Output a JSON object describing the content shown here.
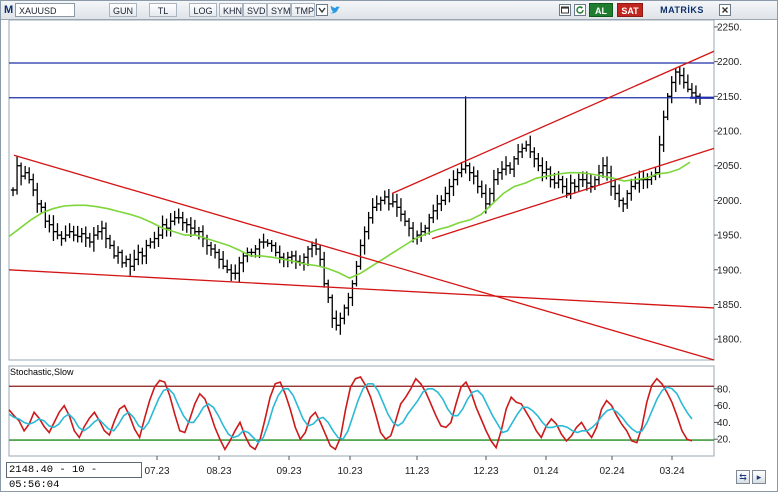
{
  "toolbar": {
    "logo": "M",
    "symbol": "XAUUSD",
    "buttons": [
      "GUN",
      "TL",
      "LOG",
      "KHN",
      "SVD",
      "SYM",
      "TMP"
    ],
    "dropdown_icon": "chevron-down-icon",
    "twitter_icon": "twitter-icon",
    "right_icons": [
      "window-icon",
      "refresh-icon",
      "close-icon"
    ],
    "buy_label": "AL",
    "sell_label": "SAT",
    "brand": "MATRİKS",
    "colors": {
      "buy": "#1e7d2e",
      "sell": "#c0261f",
      "brand": "#0d2f6a"
    }
  },
  "readout": "2148.40 - 10 - 05:56:04",
  "nav_icons": [
    "sync-icon",
    "scroll-right-icon"
  ],
  "indicator": {
    "title": "Stochastic,Slow",
    "levels": [
      "80.",
      "60.",
      "40.",
      "20."
    ]
  },
  "chart_data": [
    {
      "type": "line",
      "subtype": "ohlc-bars",
      "title": "XAUUSD",
      "x_tick_labels": [
        "07.23",
        "08.23",
        "09.23",
        "10.23",
        "11.23",
        "12.23",
        "01.24",
        "02.24",
        "03.24"
      ],
      "y_tick_labels": [
        "1800.",
        "1850.",
        "1900.",
        "1950.",
        "2000.",
        "2050.",
        "2100.",
        "2150.",
        "2200.",
        "2250."
      ],
      "ylim": [
        1770,
        2260
      ],
      "last_price": "2148.40",
      "series": [
        {
          "name": "",
          "color": "#000000",
          "closes": [
            2015,
            2050,
            2035,
            2040,
            2030,
            2015,
            1995,
            1990,
            1970,
            1965,
            1955,
            1950,
            1945,
            1950,
            1955,
            1950,
            1948,
            1952,
            1946,
            1940,
            1950,
            1955,
            1960,
            1945,
            1935,
            1920,
            1925,
            1910,
            1915,
            1905,
            1915,
            1925,
            1920,
            1935,
            1940,
            1945,
            1950,
            1965,
            1960,
            1970,
            1975,
            1975,
            1968,
            1965,
            1960,
            1955,
            1955,
            1945,
            1935,
            1930,
            1925,
            1915,
            1905,
            1900,
            1895,
            1895,
            1910,
            1920,
            1925,
            1925,
            1930,
            1940,
            1940,
            1938,
            1935,
            1925,
            1918,
            1915,
            1918,
            1920,
            1912,
            1910,
            1918,
            1930,
            1935,
            1930,
            1915,
            1880,
            1860,
            1830,
            1820,
            1830,
            1845,
            1860,
            1880,
            1905,
            1935,
            1955,
            1975,
            1990,
            1995,
            2000,
            2005,
            1995,
            1998,
            1990,
            1980,
            1970,
            1960,
            1945,
            1950,
            1955,
            1960,
            1975,
            1985,
            1995,
            2000,
            2010,
            2020,
            2030,
            2040,
            2045,
            2050,
            2040,
            2035,
            2020,
            2010,
            1995,
            2010,
            2030,
            2040,
            2045,
            2050,
            2045,
            2060,
            2070,
            2075,
            2080,
            2070,
            2060,
            2050,
            2040,
            2045,
            2030,
            2025,
            2030,
            2020,
            2010,
            2025,
            2020,
            2030,
            2030,
            2025,
            2020,
            2030,
            2040,
            2050,
            2040,
            2020,
            2010,
            2000,
            1995,
            2010,
            2020,
            2025,
            2030,
            2030,
            2030,
            2035,
            2040,
            2080,
            2120,
            2150,
            2170,
            2185,
            2180,
            2170,
            2160,
            2155,
            2150,
            2148
          ]
        },
        {
          "name": "",
          "color": "#7dd63a",
          "values": [
            1948,
            1960,
            1972,
            1982,
            1988,
            1992,
            1993,
            1993,
            1991,
            1988,
            1984,
            1980,
            1975,
            1968,
            1960,
            1955,
            1950,
            1950,
            1945,
            1940,
            1935,
            1928,
            1920,
            1920,
            1918,
            1915,
            1912,
            1908,
            1906,
            1902,
            1896,
            1888,
            1895,
            1905,
            1915,
            1925,
            1935,
            1945,
            1952,
            1958,
            1962,
            1968,
            1972,
            1980,
            1995,
            2010,
            2020,
            2025,
            2032,
            2035,
            2038,
            2040,
            2040,
            2038,
            2035,
            2032,
            2028,
            2030,
            2032,
            2038,
            2040,
            2045,
            2055
          ]
        },
        {
          "name": "",
          "color": "#1e2fa8",
          "values": [
            2198,
            2148
          ],
          "kind": "horizontal levels"
        },
        {
          "name": "",
          "color": "#d41414",
          "kind": "trend lines",
          "lines": [
            [
              2065,
              1770
            ],
            [
              1900,
              1845
            ],
            [
              2010,
              2215
            ],
            [
              1945,
              2075
            ]
          ]
        }
      ]
    },
    {
      "type": "line",
      "title": "Stochastic,Slow",
      "y_tick_labels": [
        "80.",
        "60.",
        "40.",
        "20."
      ],
      "ylim": [
        0,
        100
      ],
      "levels": [
        83,
        19
      ],
      "series": [
        {
          "name": "",
          "color": "#cc1a1a",
          "values": [
            55,
            48,
            42,
            30,
            38,
            52,
            45,
            35,
            28,
            40,
            52,
            60,
            48,
            30,
            22,
            35,
            45,
            52,
            42,
            30,
            25,
            42,
            56,
            60,
            48,
            32,
            22,
            45,
            66,
            82,
            90,
            88,
            72,
            50,
            30,
            28,
            44,
            62,
            74,
            68,
            52,
            34,
            20,
            8,
            18,
            30,
            40,
            24,
            12,
            8,
            20,
            44,
            70,
            86,
            88,
            74,
            56,
            34,
            20,
            28,
            46,
            52,
            40,
            26,
            12,
            8,
            22,
            55,
            82,
            92,
            94,
            84,
            70,
            50,
            28,
            20,
            24,
            42,
            62,
            70,
            80,
            92,
            86,
            76,
            62,
            48,
            36,
            34,
            40,
            62,
            82,
            88,
            76,
            58,
            44,
            30,
            18,
            10,
            30,
            56,
            70,
            64,
            62,
            52,
            42,
            30,
            22,
            36,
            44,
            38,
            26,
            18,
            24,
            34,
            40,
            30,
            22,
            34,
            56,
            66,
            60,
            48,
            38,
            30,
            18,
            16,
            34,
            64,
            84,
            92,
            86,
            76,
            64,
            48,
            30,
            20,
            18
          ]
        },
        {
          "name": "",
          "color": "#2ab9d6",
          "values": [
            50,
            46,
            44,
            40,
            38,
            40,
            44,
            42,
            36,
            34,
            38,
            46,
            50,
            44,
            34,
            30,
            34,
            40,
            44,
            38,
            32,
            30,
            38,
            48,
            52,
            46,
            36,
            32,
            40,
            54,
            68,
            78,
            80,
            74,
            60,
            48,
            40,
            40,
            48,
            58,
            62,
            58,
            48,
            36,
            26,
            22,
            24,
            30,
            28,
            22,
            16,
            22,
            38,
            58,
            72,
            80,
            80,
            72,
            58,
            44,
            36,
            38,
            44,
            46,
            40,
            30,
            22,
            20,
            30,
            48,
            66,
            80,
            86,
            86,
            78,
            64,
            50,
            40,
            36,
            40,
            50,
            58,
            66,
            76,
            80,
            80,
            76,
            68,
            56,
            48,
            48,
            56,
            68,
            76,
            78,
            72,
            60,
            48,
            38,
            28,
            30,
            40,
            50,
            58,
            58,
            54,
            48,
            40,
            34,
            34,
            36,
            36,
            34,
            30,
            28,
            30,
            30,
            34,
            40,
            48,
            54,
            56,
            52,
            46,
            38,
            32,
            28,
            30,
            40,
            54,
            68,
            78,
            82,
            80,
            74,
            62,
            52,
            44
          ]
        }
      ]
    }
  ]
}
